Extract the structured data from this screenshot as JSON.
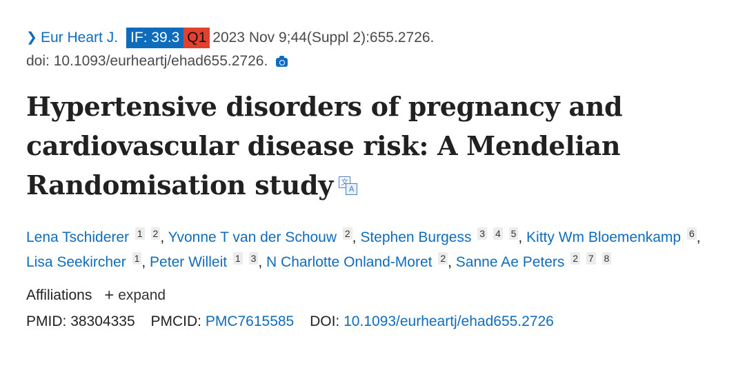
{
  "citation": {
    "journal": "Eur Heart J.",
    "if_badge": "IF: 39.3",
    "quartile_badge": "Q1",
    "date_issue": "2023 Nov 9;44(Suppl 2):655.2726.",
    "doi_line": "doi: 10.1093/eurheartj/ehad655.2726.",
    "colors": {
      "link": "#0f6cbd",
      "if_bg": "#0f6cbd",
      "q1_bg": "#e2412f"
    }
  },
  "title": "Hypertensive disorders of pregnancy and cardiovascular disease risk: A Mendelian Randomisation study",
  "authors": [
    {
      "name": "Lena Tschiderer",
      "affils": [
        "1",
        "2"
      ]
    },
    {
      "name": "Yvonne T van der Schouw",
      "affils": [
        "2"
      ]
    },
    {
      "name": "Stephen Burgess",
      "affils": [
        "3",
        "4",
        "5"
      ]
    },
    {
      "name": "Kitty Wm Bloemenkamp",
      "affils": [
        "6"
      ]
    },
    {
      "name": "Lisa Seekircher",
      "affils": [
        "1"
      ]
    },
    {
      "name": "Peter Willeit",
      "affils": [
        "1",
        "3"
      ]
    },
    {
      "name": "N Charlotte Onland-Moret",
      "affils": [
        "2"
      ]
    },
    {
      "name": "Sanne Ae Peters",
      "affils": [
        "2",
        "7",
        "8"
      ]
    }
  ],
  "affiliations": {
    "label": "Affiliations",
    "expand_label": "expand"
  },
  "identifiers": {
    "pmid_label": "PMID:",
    "pmid": "38304335",
    "pmcid_label": "PMCID:",
    "pmcid": "PMC7615585",
    "doi_label": "DOI:",
    "doi": "10.1093/eurheartj/ehad655.2726"
  }
}
